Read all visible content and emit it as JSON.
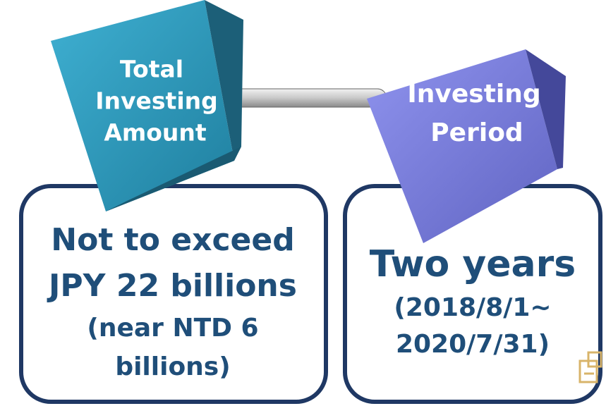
{
  "nodes": [
    {
      "label_lines": [
        "Total",
        "Investing",
        "Amount"
      ]
    },
    {
      "label_lines": [
        "Investing",
        "Period"
      ]
    }
  ],
  "boxes": [
    {
      "lines": [
        "Not to exceed",
        "JPY 22 billions",
        "(near NTD 6",
        "billions)"
      ]
    },
    {
      "lines": [
        "Two years",
        "(2018/8/1~",
        "2020/7/31)"
      ]
    }
  ]
}
